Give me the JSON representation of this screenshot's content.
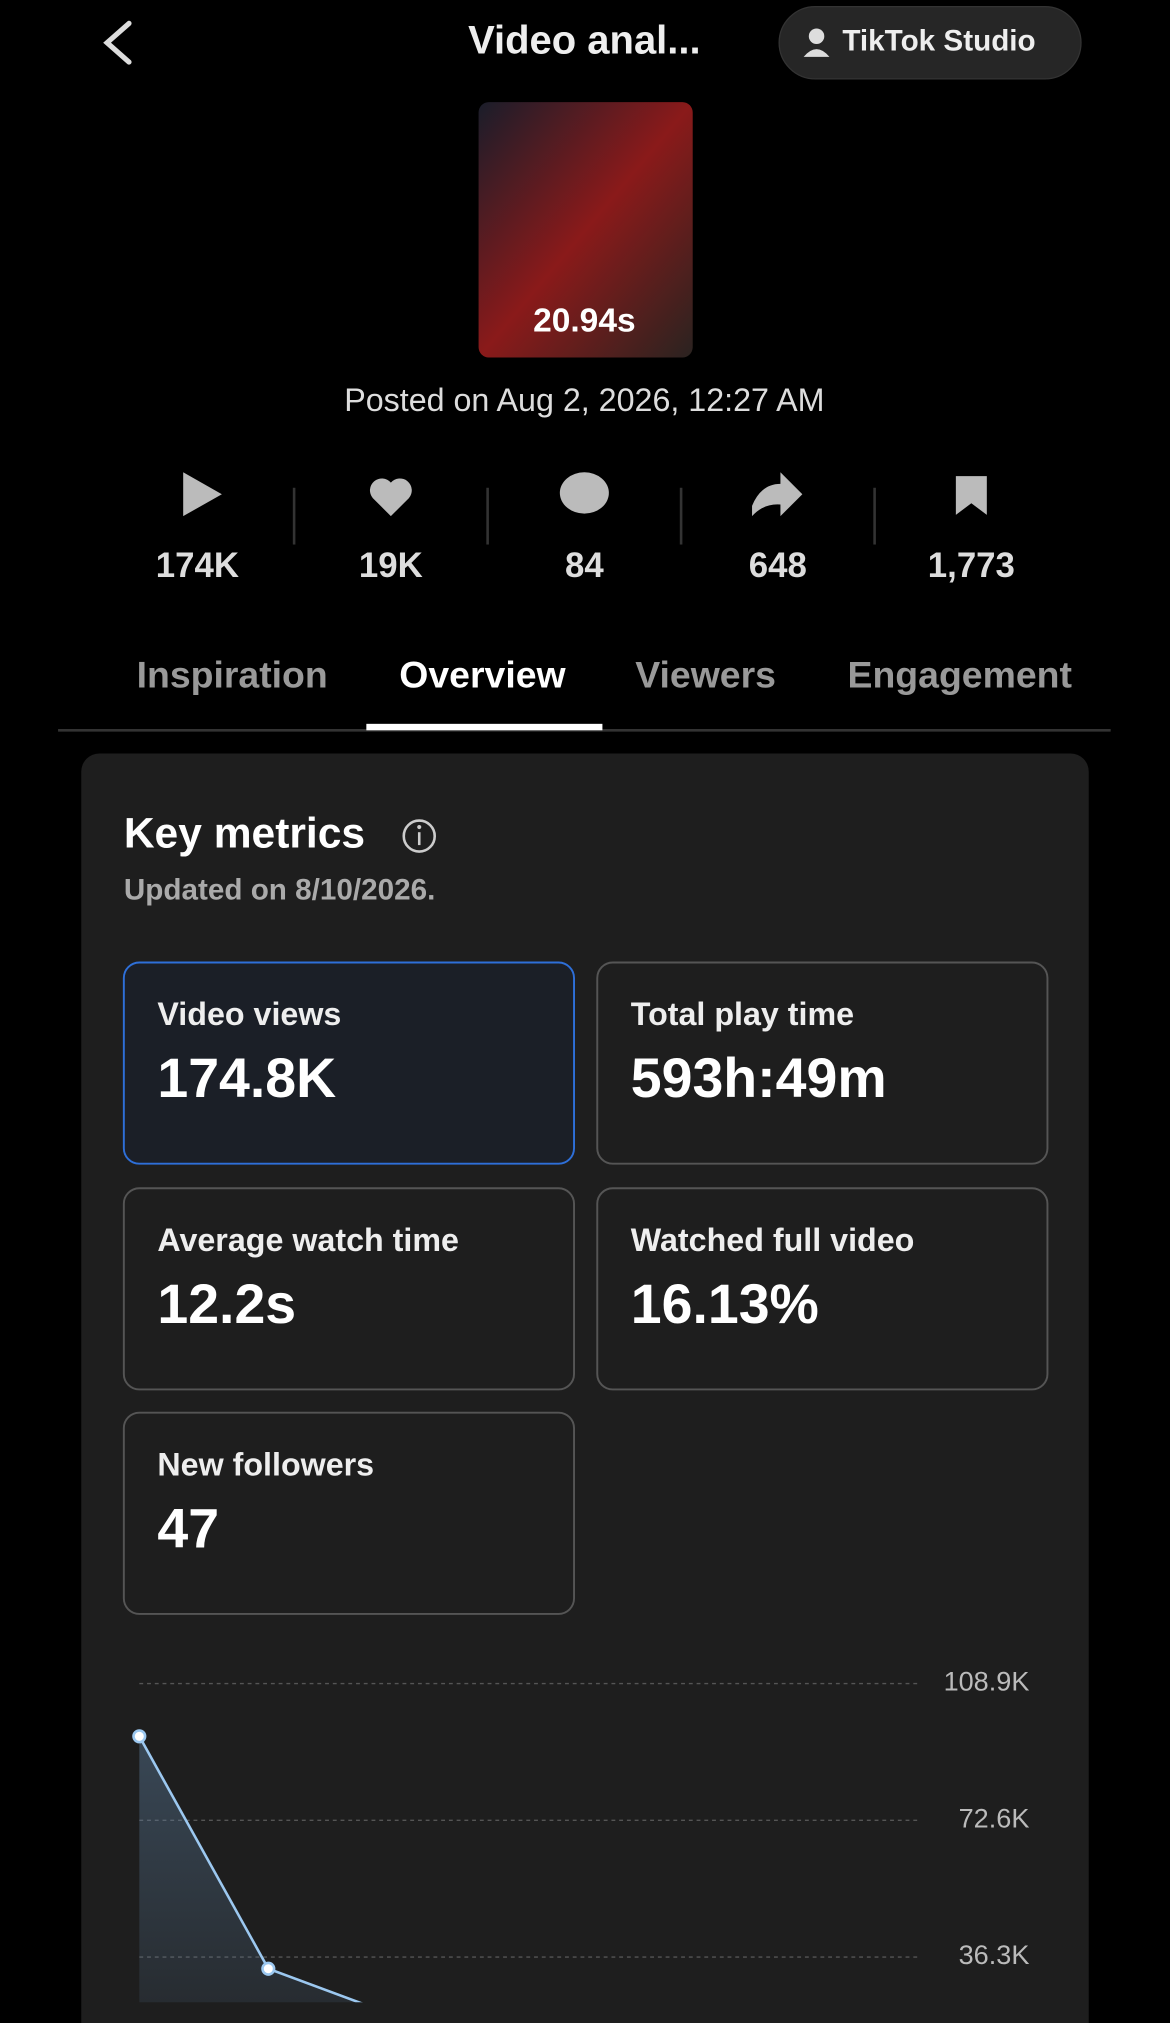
{
  "header": {
    "title": "Video anal...",
    "button": "TikTok Studio"
  },
  "video": {
    "duration": "20.94s",
    "posted": "Posted on Aug 2, 2026, 12:27 AM"
  },
  "stats": [
    "174K",
    "19K",
    "84",
    "648",
    "1,773"
  ],
  "tabs": [
    "Inspiration",
    "Overview",
    "Viewers",
    "Engagement"
  ],
  "key_metrics": {
    "title": "Key metrics",
    "updated": "Updated on 8/10/2026.",
    "metrics": [
      {
        "label": "Video views",
        "value": "174.8K"
      },
      {
        "label": "Total play time",
        "value": "593h:49m"
      },
      {
        "label": "Average watch time",
        "value": "12.2s"
      },
      {
        "label": "Watched full video",
        "value": "16.13%"
      },
      {
        "label": "New followers",
        "value": "47"
      }
    ]
  },
  "chart_data": {
    "type": "line",
    "categories": [
      null,
      null,
      null
    ],
    "values": [
      94900,
      33200,
      20500
    ],
    "color": "#9cc8f0",
    "ylim": [
      0,
      108900
    ],
    "yticks": [
      {
        "value": 108900,
        "label": "108.9K"
      },
      {
        "value": 72600,
        "label": "72.6K"
      },
      {
        "value": 36300,
        "label": "36.3K"
      }
    ],
    "grid": true
  }
}
